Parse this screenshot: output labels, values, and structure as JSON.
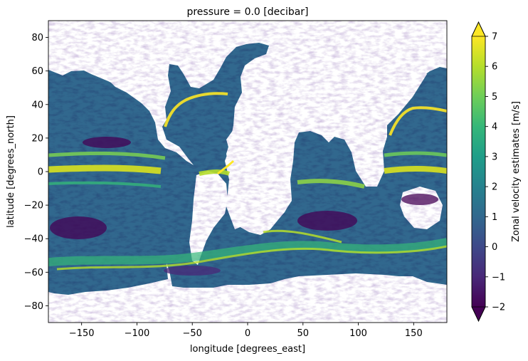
{
  "chart_data": {
    "type": "heatmap",
    "title": "pressure = 0.0 [decibar]",
    "xlabel": "longitude [degrees_east]",
    "ylabel": "latitude [degrees_north]",
    "xlim": [
      -180,
      180
    ],
    "ylim": [
      -90,
      90
    ],
    "xticks": [
      -150,
      -100,
      -50,
      0,
      50,
      100,
      150
    ],
    "yticks": [
      -80,
      -60,
      -40,
      -20,
      0,
      20,
      40,
      60,
      80
    ],
    "colorbar": {
      "label": "Zonal velocity estimates [m/s]",
      "range": [
        -2,
        7
      ],
      "ticks": [
        -2,
        -1,
        0,
        1,
        2,
        3,
        4,
        5,
        6,
        7
      ],
      "colormap": "viridis",
      "extend": "both"
    },
    "colormap_colors": [
      "#440154",
      "#482878",
      "#3e4989",
      "#31688e",
      "#26828e",
      "#1f9e89",
      "#35b779",
      "#6ece58",
      "#b5de2b",
      "#fde725"
    ],
    "masked_color": "#ffffff"
  }
}
